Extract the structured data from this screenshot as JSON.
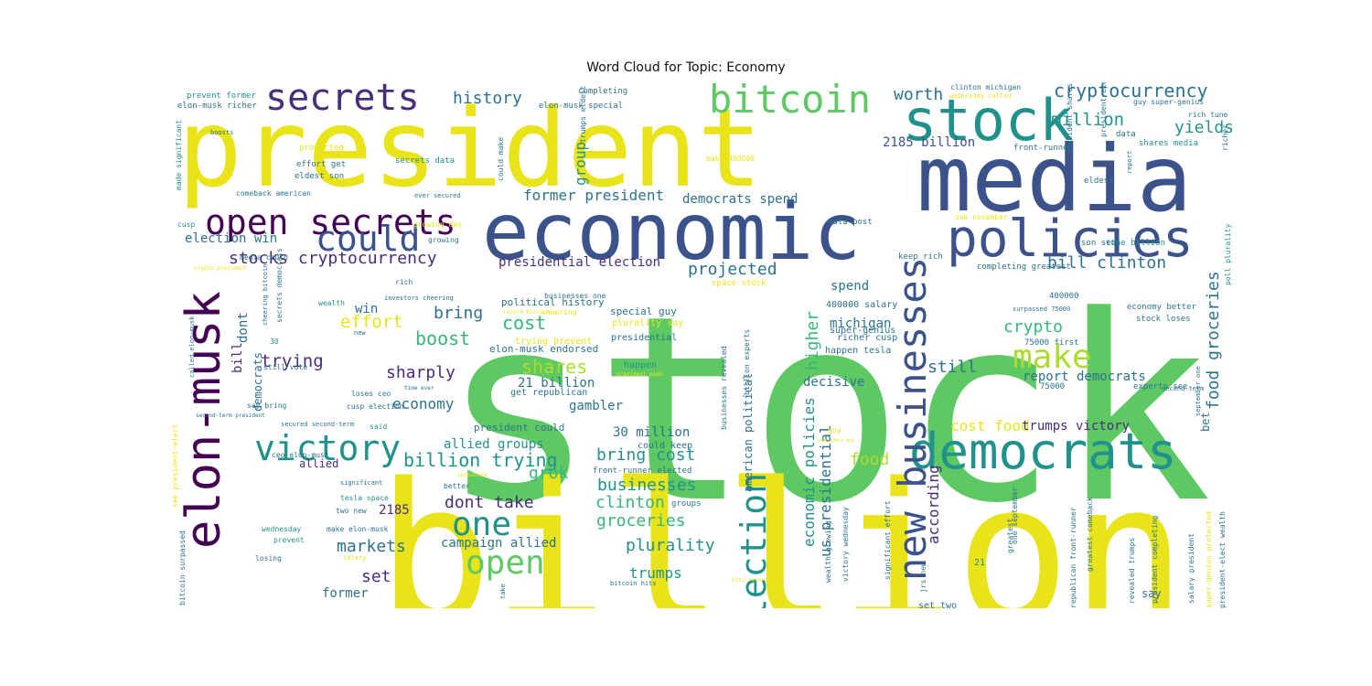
{
  "title": "Word Cloud for Topic: Economy",
  "colors": {
    "yellow": "#e8e419",
    "lightgreen": "#5ec962",
    "teal": "#21918c",
    "blue": "#3b528b",
    "purple": "#440154",
    "midgreen": "#35b779",
    "tealblue": "#2c728e",
    "violet": "#472d7b",
    "lime": "#addc30"
  },
  "words": [
    {
      "text": "stocks",
      "color": "lightgreen"
    },
    {
      "text": "billion",
      "color": "yellow"
    },
    {
      "text": "president",
      "color": "yellow"
    },
    {
      "text": "media",
      "color": "blue"
    },
    {
      "text": "economic",
      "color": "blue"
    },
    {
      "text": "stock",
      "color": "teal"
    },
    {
      "text": "policies",
      "color": "blue"
    },
    {
      "text": "democrats",
      "color": "teal"
    },
    {
      "text": "elon-musk",
      "color": "purple"
    },
    {
      "text": "new businesses",
      "color": "blue"
    },
    {
      "text": "bitcoin",
      "color": "lightgreen"
    },
    {
      "text": "secrets",
      "color": "violet"
    },
    {
      "text": "open secrets",
      "color": "purple"
    },
    {
      "text": "could",
      "color": "blue"
    },
    {
      "text": "victory",
      "color": "teal"
    },
    {
      "text": "election",
      "color": "teal"
    },
    {
      "text": "make",
      "color": "lime"
    },
    {
      "text": "one",
      "color": "teal"
    },
    {
      "text": "open",
      "color": "lightgreen"
    },
    {
      "text": "cryptocurrency",
      "color": "tealblue"
    },
    {
      "text": "yields",
      "color": "teal"
    },
    {
      "text": "million",
      "color": "teal"
    },
    {
      "text": "worth",
      "color": "tealblue"
    },
    {
      "text": "history",
      "color": "tealblue"
    },
    {
      "text": "group",
      "color": "teal"
    },
    {
      "text": "former president",
      "color": "tealblue"
    },
    {
      "text": "democrats spend",
      "color": "tealblue"
    },
    {
      "text": "2185 billion",
      "color": "blue"
    },
    {
      "text": "stocks cryptocurrency",
      "color": "violet"
    },
    {
      "text": "election win",
      "color": "tealblue"
    },
    {
      "text": "presidential election",
      "color": "violet"
    },
    {
      "text": "projected",
      "color": "tealblue"
    },
    {
      "text": "bill clinton",
      "color": "tealblue"
    },
    {
      "text": "food groceries",
      "color": "tealblue"
    },
    {
      "text": "effort",
      "color": "yellow"
    },
    {
      "text": "cost",
      "color": "midgreen"
    },
    {
      "text": "boost",
      "color": "midgreen"
    },
    {
      "text": "bring",
      "color": "tealblue"
    },
    {
      "text": "trying",
      "color": "violet"
    },
    {
      "text": "shares",
      "color": "lime"
    },
    {
      "text": "sharply",
      "color": "violet"
    },
    {
      "text": "21 billion",
      "color": "tealblue"
    },
    {
      "text": "economy",
      "color": "tealblue"
    },
    {
      "text": "gambler",
      "color": "tealblue"
    },
    {
      "text": "crypto",
      "color": "midgreen"
    },
    {
      "text": "still",
      "color": "tealblue"
    },
    {
      "text": "higher",
      "color": "midgreen"
    },
    {
      "text": "michigan",
      "color": "tealblue"
    },
    {
      "text": "decisive",
      "color": "tealblue"
    },
    {
      "text": "report democrats",
      "color": "tealblue"
    },
    {
      "text": "cost food",
      "color": "yellow"
    },
    {
      "text": "trumps victory",
      "color": "violet"
    },
    {
      "text": "billion trying",
      "color": "teal"
    },
    {
      "text": "allied groups",
      "color": "teal"
    },
    {
      "text": "bring cost",
      "color": "teal"
    },
    {
      "text": "grok",
      "color": "midgreen"
    },
    {
      "text": "businesses",
      "color": "teal"
    },
    {
      "text": "dont take",
      "color": "violet"
    },
    {
      "text": "clinton",
      "color": "midgreen"
    },
    {
      "text": "groceries",
      "color": "midgreen"
    },
    {
      "text": "markets",
      "color": "tealblue"
    },
    {
      "text": "plurality",
      "color": "teal"
    },
    {
      "text": "trumps",
      "color": "teal"
    },
    {
      "text": "set",
      "color": "violet"
    },
    {
      "text": "campaign allied",
      "color": "tealblue"
    },
    {
      "text": "former",
      "color": "tealblue"
    },
    {
      "text": "economic policies",
      "color": "teal"
    },
    {
      "text": "us presidential",
      "color": "tealblue"
    },
    {
      "text": "according",
      "color": "violet"
    },
    {
      "text": "food",
      "color": "lime"
    },
    {
      "text": "30 million",
      "color": "tealblue"
    },
    {
      "text": "bet",
      "color": "tealblue"
    },
    {
      "text": "spend",
      "color": "tealblue"
    },
    {
      "text": "win",
      "color": "tealblue"
    },
    {
      "text": "dont",
      "color": "tealblue"
    },
    {
      "text": "bill",
      "color": "violet"
    },
    {
      "text": "democrats",
      "color": "tealblue"
    },
    {
      "text": "2185",
      "color": "violet"
    },
    {
      "text": "allied",
      "color": "violet"
    },
    {
      "text": "american political",
      "color": "tealblue"
    },
    {
      "text": "president could",
      "color": "tealblue"
    },
    {
      "text": "political history",
      "color": "tealblue"
    },
    {
      "text": "elon-musk endorsed",
      "color": "tealblue"
    },
    {
      "text": "get republican",
      "color": "tealblue"
    },
    {
      "text": "presidential",
      "color": "tealblue"
    },
    {
      "text": "special guy",
      "color": "tealblue"
    },
    {
      "text": "plurality say",
      "color": "yellow"
    },
    {
      "text": "trying prevent",
      "color": "yellow"
    },
    {
      "text": "richer cusp",
      "color": "tealblue"
    },
    {
      "text": "happen",
      "color": "teal"
    },
    {
      "text": "400000 salary",
      "color": "tealblue"
    },
    {
      "text": "super-genius",
      "color": "tealblue"
    },
    {
      "text": "happen tesla",
      "color": "tealblue"
    },
    {
      "text": "billion experts",
      "color": "tealblue"
    },
    {
      "text": "businesses revealed",
      "color": "tealblue"
    },
    {
      "text": "could keep",
      "color": "tealblue"
    },
    {
      "text": "front-runner elected",
      "color": "tealblue"
    },
    {
      "text": "groups",
      "color": "tealblue"
    },
    {
      "text": "wealth growing",
      "color": "tealblue"
    },
    {
      "text": "victory wednesday",
      "color": "tealblue"
    },
    {
      "text": "significant effort",
      "color": "tealblue"
    },
    {
      "text": "jrs new",
      "color": "tealblue"
    },
    {
      "text": "set two",
      "color": "tealblue"
    },
    {
      "text": "keep rich",
      "color": "tealblue"
    },
    {
      "text": "space stock",
      "color": "yellow"
    },
    {
      "text": "75000 first",
      "color": "tealblue"
    },
    {
      "text": "75000",
      "color": "tealblue"
    },
    {
      "text": "400000",
      "color": "tealblue"
    },
    {
      "text": "surpassed 75000",
      "color": "tealblue"
    },
    {
      "text": "completing greatest",
      "color": "tealblue"
    },
    {
      "text": "son set",
      "color": "tealblue"
    },
    {
      "text": "tune billion",
      "color": "teal"
    },
    {
      "text": "economy better",
      "color": "tealblue"
    },
    {
      "text": "stock loses",
      "color": "tealblue"
    },
    {
      "text": "experts see",
      "color": "tealblue"
    },
    {
      "text": "second-term",
      "color": "tealblue"
    },
    {
      "text": "september one",
      "color": "tealblue"
    },
    {
      "text": "poll plurality",
      "color": "teal"
    },
    {
      "text": "one november",
      "color": "yellow"
    },
    {
      "text": "eldest",
      "color": "tealblue"
    },
    {
      "text": "report",
      "color": "tealblue"
    },
    {
      "text": "data post",
      "color": "tealblue"
    },
    {
      "text": "front-runner",
      "color": "tealblue"
    },
    {
      "text": "shares media",
      "color": "teal"
    },
    {
      "text": "data",
      "color": "tealblue"
    },
    {
      "text": "richer",
      "color": "tealblue"
    },
    {
      "text": "rich tune",
      "color": "tealblue"
    },
    {
      "text": "guy super-genius",
      "color": "tealblue"
    },
    {
      "text": "wednesday called",
      "color": "yellow"
    },
    {
      "text": "clinton michigan",
      "color": "tealblue"
    },
    {
      "text": "president-elect",
      "color": "tealblue"
    },
    {
      "text": "president shares",
      "color": "tealblue"
    },
    {
      "text": "make 400000",
      "color": "yellow"
    },
    {
      "text": "trumps eldest",
      "color": "tealblue"
    },
    {
      "text": "could make",
      "color": "tealblue"
    },
    {
      "text": "completing",
      "color": "tealblue"
    },
    {
      "text": "elon-musk special",
      "color": "tealblue"
    },
    {
      "text": "prevent former",
      "color": "teal"
    },
    {
      "text": "elon-musk richer",
      "color": "tealblue"
    },
    {
      "text": "boosts",
      "color": "tealblue"
    },
    {
      "text": "protected",
      "color": "yellow"
    },
    {
      "text": "effort get",
      "color": "tealblue"
    },
    {
      "text": "eldest son",
      "color": "tealblue"
    },
    {
      "text": "secrets data",
      "color": "teal"
    },
    {
      "text": "made significant",
      "color": "teal"
    },
    {
      "text": "comeback american",
      "color": "tealblue"
    },
    {
      "text": "ever secured",
      "color": "tealblue"
    },
    {
      "text": "cusp",
      "color": "teal"
    },
    {
      "text": "growing day",
      "color": "yellow"
    },
    {
      "text": "growing",
      "color": "tealblue"
    },
    {
      "text": "media could",
      "color": "tealblue"
    },
    {
      "text": "crypto president",
      "color": "yellow"
    },
    {
      "text": "rich",
      "color": "tealblue"
    },
    {
      "text": "businesses one",
      "color": "tealblue"
    },
    {
      "text": "cheering",
      "color": "yellow"
    },
    {
      "text": "wealth",
      "color": "teal"
    },
    {
      "text": "investors cheering",
      "color": "tealblue"
    },
    {
      "text": "record bitcoin",
      "color": "yellow"
    },
    {
      "text": "secrets democrats",
      "color": "tealblue"
    },
    {
      "text": "cheering bitcoin",
      "color": "tealblue"
    },
    {
      "text": "called elon-musk",
      "color": "tealblue"
    },
    {
      "text": "new",
      "color": "tealblue"
    },
    {
      "text": "30",
      "color": "teal"
    },
    {
      "text": "still vote",
      "color": "tealblue"
    },
    {
      "text": "time ever",
      "color": "tealblue"
    },
    {
      "text": "president made",
      "color": "yellow"
    },
    {
      "text": "loses ceo",
      "color": "tealblue"
    },
    {
      "text": "cusp election",
      "color": "tealblue"
    },
    {
      "text": "say bring",
      "color": "tealblue"
    },
    {
      "text": "second-term president",
      "color": "tealblue"
    },
    {
      "text": "secured second-term",
      "color": "tealblue"
    },
    {
      "text": "said",
      "color": "teal"
    },
    {
      "text": "see president-elect",
      "color": "yellow"
    },
    {
      "text": "ceo elon-musk",
      "color": "tealblue"
    },
    {
      "text": "significant",
      "color": "tealblue"
    },
    {
      "text": "better",
      "color": "tealblue"
    },
    {
      "text": "surpassed",
      "color": "yellow"
    },
    {
      "text": "tesla space",
      "color": "teal"
    },
    {
      "text": "two new",
      "color": "tealblue"
    },
    {
      "text": "make elon-musk",
      "color": "tealblue"
    },
    {
      "text": "wednesday",
      "color": "teal"
    },
    {
      "text": "prevent",
      "color": "teal"
    },
    {
      "text": "losing",
      "color": "tealblue"
    },
    {
      "text": "salary",
      "color": "yellow"
    },
    {
      "text": "take",
      "color": "tealblue"
    },
    {
      "text": "bitcoin hits",
      "color": "tealblue"
    },
    {
      "text": "hits record",
      "color": "yellow"
    },
    {
      "text": "bitcoin surpassed",
      "color": "tealblue"
    },
    {
      "text": "guy",
      "color": "yellow"
    },
    {
      "text": "president guy",
      "color": "yellow"
    },
    {
      "text": "21",
      "color": "teal"
    },
    {
      "text": "greatest",
      "color": "tealblue"
    },
    {
      "text": "one september",
      "color": "tealblue"
    },
    {
      "text": "republican front-runner",
      "color": "tealblue"
    },
    {
      "text": "greatest comeback",
      "color": "tealblue"
    },
    {
      "text": "revealed trumps",
      "color": "tealblue"
    },
    {
      "text": "president completing",
      "color": "tealblue"
    },
    {
      "text": "salary president",
      "color": "tealblue"
    },
    {
      "text": "super-genius protected",
      "color": "yellow"
    },
    {
      "text": "president-elect wealth",
      "color": "tealblue"
    },
    {
      "text": "say",
      "color": "tealblue"
    }
  ]
}
